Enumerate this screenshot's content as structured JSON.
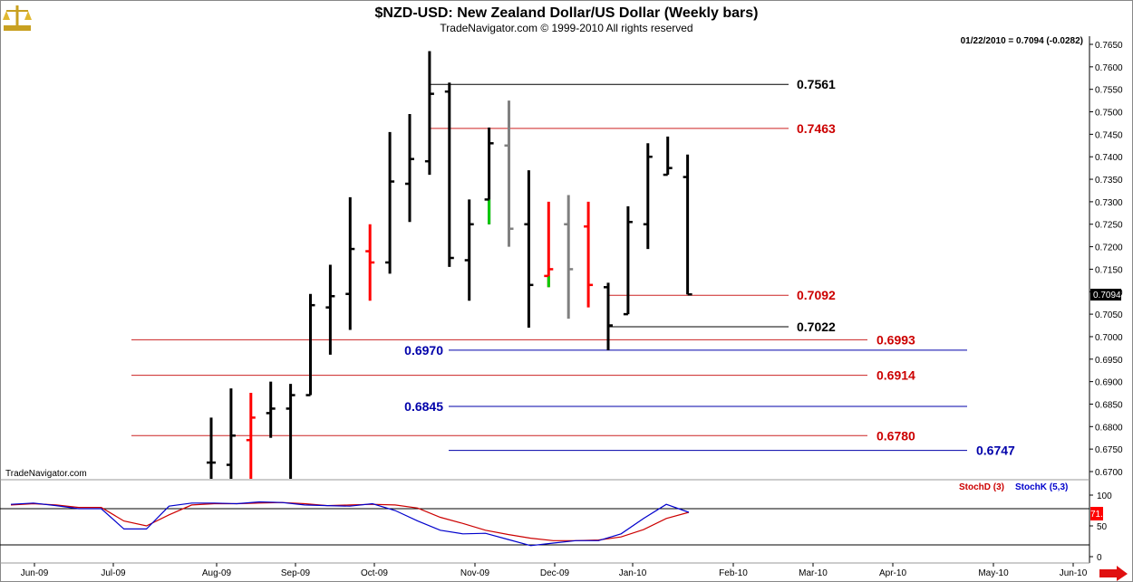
{
  "header": {
    "title": "$NZD-USD:  New Zealand Dollar/US Dollar  (Weekly bars)",
    "subtitle": "TradeNavigator.com © 1999-2010 All rights reserved",
    "quote": "01/22/2010 = 0.7094 (-0.0282)",
    "watermark": "TradeNavigator.com"
  },
  "colors": {
    "up": "#000000",
    "down": "#ff0000",
    "neutral": "#808080",
    "green": "#00cc00",
    "level_black": "#000000",
    "level_red": "#cc0000",
    "level_blue": "#0000aa",
    "stochD": "#cc0000",
    "stochK": "#0000cc",
    "last_price_bg": "#000000",
    "stoch_value_bg": "#ff0000"
  },
  "icons": {
    "logo": "golden-scale-logo-icon",
    "scroll": "red-right-arrow-icon"
  },
  "chart_data": [
    {
      "type": "ohlc",
      "title": "$NZD-USD:  New Zealand Dollar/US Dollar  (Weekly bars)",
      "ylim": [
        0.6665,
        0.7675
      ],
      "yticks": [
        "0.7650",
        "0.7600",
        "0.7550",
        "0.7500",
        "0.7450",
        "0.7400",
        "0.7350",
        "0.7300",
        "0.7250",
        "0.7200",
        "0.7150",
        "0.7100",
        "0.7050",
        "0.7000",
        "0.6950",
        "0.6900",
        "0.6850",
        "0.6800",
        "0.6750",
        "0.6700"
      ],
      "last_price": "0.7094",
      "bars": [
        {
          "o": 0.672,
          "h": 0.682,
          "l": 0.6665,
          "c": 0.672,
          "color": "black"
        },
        {
          "o": 0.6715,
          "h": 0.6885,
          "l": 0.6665,
          "c": 0.678,
          "color": "black"
        },
        {
          "o": 0.677,
          "h": 0.6875,
          "l": 0.6665,
          "c": 0.682,
          "color": "red"
        },
        {
          "o": 0.683,
          "h": 0.69,
          "l": 0.6775,
          "c": 0.684,
          "color": "black"
        },
        {
          "o": 0.684,
          "h": 0.6895,
          "l": 0.6665,
          "c": 0.687,
          "color": "black"
        },
        {
          "o": 0.687,
          "h": 0.7095,
          "l": 0.687,
          "c": 0.707,
          "color": "black"
        },
        {
          "o": 0.7065,
          "h": 0.716,
          "l": 0.696,
          "c": 0.709,
          "color": "black"
        },
        {
          "o": 0.7095,
          "h": 0.731,
          "l": 0.7015,
          "c": 0.7195,
          "color": "black"
        },
        {
          "o": 0.719,
          "h": 0.725,
          "l": 0.708,
          "c": 0.7165,
          "color": "red"
        },
        {
          "o": 0.7165,
          "h": 0.7455,
          "l": 0.714,
          "c": 0.7345,
          "color": "black"
        },
        {
          "o": 0.734,
          "h": 0.7495,
          "l": 0.7255,
          "c": 0.7395,
          "color": "black"
        },
        {
          "o": 0.739,
          "h": 0.7635,
          "l": 0.736,
          "c": 0.754,
          "color": "black"
        },
        {
          "o": 0.7545,
          "h": 0.7565,
          "l": 0.7155,
          "c": 0.7175,
          "color": "black"
        },
        {
          "o": 0.717,
          "h": 0.7305,
          "l": 0.708,
          "c": 0.725,
          "color": "black"
        },
        {
          "o": 0.7305,
          "h": 0.7465,
          "l": 0.725,
          "c": 0.743,
          "color": "black",
          "low_tail_color": "green"
        },
        {
          "o": 0.7425,
          "h": 0.7525,
          "l": 0.72,
          "c": 0.724,
          "color": "gray"
        },
        {
          "o": 0.725,
          "h": 0.737,
          "l": 0.702,
          "c": 0.7115,
          "color": "black"
        },
        {
          "o": 0.7135,
          "h": 0.73,
          "l": 0.711,
          "c": 0.715,
          "color": "red",
          "low_tail_color": "green"
        },
        {
          "o": 0.725,
          "h": 0.7315,
          "l": 0.704,
          "c": 0.715,
          "color": "gray"
        },
        {
          "o": 0.7245,
          "h": 0.73,
          "l": 0.7065,
          "c": 0.7115,
          "color": "red"
        },
        {
          "o": 0.711,
          "h": 0.712,
          "l": 0.697,
          "c": 0.7025,
          "color": "black"
        },
        {
          "o": 0.705,
          "h": 0.729,
          "l": 0.705,
          "c": 0.7255,
          "color": "black"
        },
        {
          "o": 0.725,
          "h": 0.743,
          "l": 0.7195,
          "c": 0.74,
          "color": "black"
        },
        {
          "o": 0.736,
          "h": 0.7445,
          "l": 0.736,
          "c": 0.7375,
          "color": "black"
        },
        {
          "o": 0.7355,
          "h": 0.7405,
          "l": 0.7094,
          "c": 0.7094,
          "color": "black"
        }
      ],
      "levels": [
        {
          "value": 0.7561,
          "label": "0.7561",
          "color": "black",
          "label_side": "right"
        },
        {
          "value": 0.7463,
          "label": "0.7463",
          "color": "red",
          "label_side": "right"
        },
        {
          "value": 0.7092,
          "label": "0.7092",
          "color": "red",
          "label_side": "right"
        },
        {
          "value": 0.7022,
          "label": "0.7022",
          "color": "black",
          "label_side": "right"
        },
        {
          "value": 0.6993,
          "label": "0.6993",
          "color": "red",
          "label_side": "right"
        },
        {
          "value": 0.697,
          "label": "0.6970",
          "color": "blue",
          "label_side": "left"
        },
        {
          "value": 0.6914,
          "label": "0.6914",
          "color": "red",
          "label_side": "right"
        },
        {
          "value": 0.6845,
          "label": "0.6845",
          "color": "blue",
          "label_side": "left"
        },
        {
          "value": 0.678,
          "label": "0.6780",
          "color": "red",
          "label_side": "right"
        },
        {
          "value": 0.6747,
          "label": "0.6747",
          "color": "blue",
          "label_side": "right"
        }
      ]
    },
    {
      "type": "line",
      "ylim": [
        0,
        100
      ],
      "yticks": [
        "100",
        "50",
        "0"
      ],
      "reference_lines": [
        80,
        20
      ],
      "current_value": "71.48",
      "series": [
        {
          "name": "StochD (3)",
          "color": "red",
          "values": [
            84,
            86,
            84,
            80,
            80,
            58,
            50,
            68,
            84,
            86,
            86,
            87,
            88,
            86,
            83,
            84,
            85,
            84,
            79,
            64,
            54,
            43,
            36,
            30,
            26,
            26,
            27,
            32,
            44,
            62,
            72
          ]
        },
        {
          "name": "StochK (5,3)",
          "color": "blue",
          "values": [
            85,
            87,
            83,
            78,
            78,
            45,
            45,
            82,
            87,
            87,
            86,
            89,
            88,
            84,
            83,
            82,
            86,
            75,
            58,
            43,
            37,
            38,
            28,
            18,
            22,
            26,
            26,
            37,
            62,
            85,
            72
          ]
        }
      ]
    }
  ],
  "x_axis": {
    "labels": [
      "Jun-09",
      "Jul-09",
      "Aug-09",
      "Sep-09",
      "Oct-09",
      "Nov-09",
      "Dec-09",
      "Jan-10",
      "Feb-10",
      "Mar-10",
      "Apr-10",
      "May-10",
      "Jun-10"
    ]
  }
}
